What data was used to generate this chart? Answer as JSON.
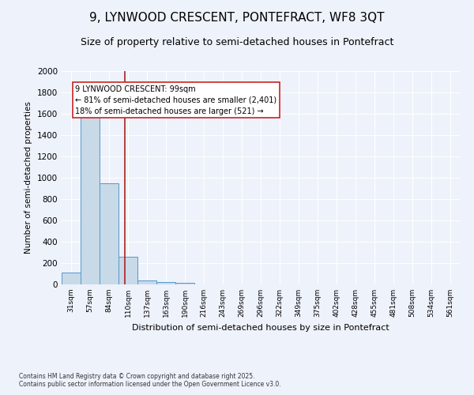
{
  "title": "9, LYNWOOD CRESCENT, PONTEFRACT, WF8 3QT",
  "subtitle": "Size of property relative to semi-detached houses in Pontefract",
  "xlabel": "Distribution of semi-detached houses by size in Pontefract",
  "ylabel": "Number of semi-detached properties",
  "footnote1": "Contains HM Land Registry data © Crown copyright and database right 2025.",
  "footnote2": "Contains public sector information licensed under the Open Government Licence v3.0.",
  "bar_labels": [
    "31sqm",
    "57sqm",
    "84sqm",
    "110sqm",
    "137sqm",
    "163sqm",
    "190sqm",
    "216sqm",
    "243sqm",
    "269sqm",
    "296sqm",
    "322sqm",
    "349sqm",
    "375sqm",
    "402sqm",
    "428sqm",
    "455sqm",
    "481sqm",
    "508sqm",
    "534sqm",
    "561sqm"
  ],
  "bar_values": [
    110,
    1600,
    950,
    260,
    35,
    25,
    18,
    0,
    0,
    0,
    0,
    0,
    0,
    0,
    0,
    0,
    0,
    0,
    0,
    0,
    0
  ],
  "bar_color": "#c8d9e8",
  "bar_edge_color": "#5599cc",
  "property_line_x": 2.82,
  "property_line_color": "#aa2222",
  "annotation_text": "9 LYNWOOD CRESCENT: 99sqm\n← 81% of semi-detached houses are smaller (2,401)\n18% of semi-detached houses are larger (521) →",
  "annotation_box_color": "#ffffff",
  "annotation_box_edge": "#cc2222",
  "ylim": [
    0,
    2000
  ],
  "yticks": [
    0,
    200,
    400,
    600,
    800,
    1000,
    1200,
    1400,
    1600,
    1800,
    2000
  ],
  "background_color": "#eef2fb",
  "grid_color": "#ffffff",
  "title_fontsize": 11,
  "subtitle_fontsize": 9
}
